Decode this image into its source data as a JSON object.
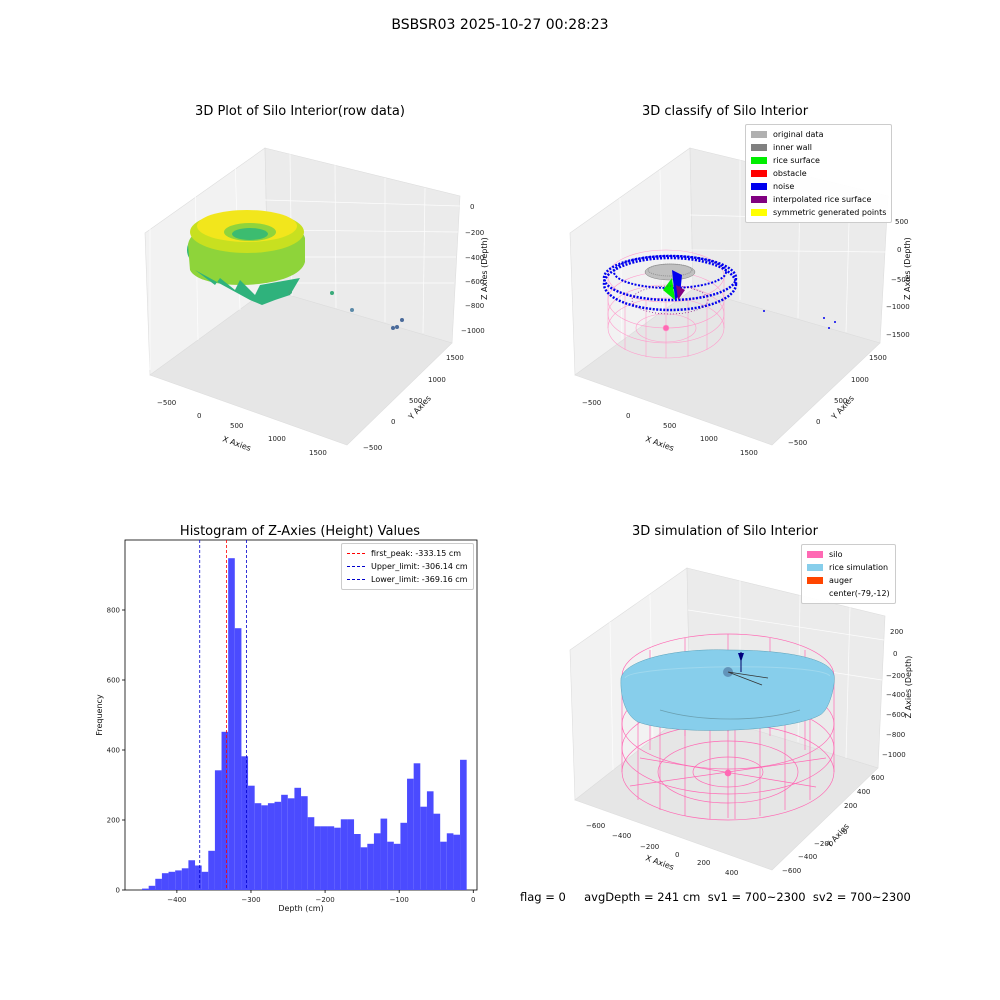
{
  "suptitle": "BSBSR03 2025-10-27 00:28:23",
  "footer": "flag = 0     avgDepth = 241 cm  sv1 = 700~2300  sv2 = 700~2300",
  "colors": {
    "original": "#b0b0b0",
    "inner_wall": "#808080",
    "rice_surface": "#00ee00",
    "obstacle": "#ff0000",
    "noise": "#0000ee",
    "interp": "#800080",
    "symmetric": "#ffff00",
    "silo": "#ff69b4",
    "rice_sim": "#87ceeb",
    "auger": "#ff4500",
    "hist_bar": "#4b4bff",
    "peak_line": "#ff0000",
    "limit_line": "#0000cc"
  },
  "panel1": {
    "title": "3D Plot of Silo Interior(row data)",
    "xlabel": "X Axies",
    "ylabel": "Y Axies",
    "zlabel": "Z Axies (Depth)",
    "xticks": [
      "−500",
      "0",
      "500",
      "1000",
      "1500"
    ],
    "yticks": [
      "−500",
      "0",
      "500",
      "1000",
      "1500"
    ],
    "zticks": [
      "0",
      "−200",
      "−400",
      "−600",
      "−800",
      "−1000"
    ]
  },
  "panel2": {
    "title": "3D classify of Silo Interior",
    "xlabel": "X Axies",
    "ylabel": "Y Axies",
    "zlabel": "Z Axies (Depth)",
    "xticks": [
      "−500",
      "0",
      "500",
      "1000",
      "1500"
    ],
    "yticks": [
      "−500",
      "0",
      "500",
      "1000",
      "1500"
    ],
    "zticks": [
      "500",
      "0",
      "−500",
      "−1000",
      "−1500"
    ],
    "legend": [
      {
        "label": "original data",
        "color": "#b0b0b0"
      },
      {
        "label": "inner wall",
        "color": "#808080"
      },
      {
        "label": "rice surface",
        "color": "#00ee00"
      },
      {
        "label": "obstacle",
        "color": "#ff0000"
      },
      {
        "label": "noise",
        "color": "#0000ee"
      },
      {
        "label": "interpolated rice surface",
        "color": "#800080"
      },
      {
        "label": "symmetric generated points",
        "color": "#ffff00"
      }
    ]
  },
  "panel4": {
    "title": "3D simulation of Silo Interior",
    "xlabel": "X Axies",
    "ylabel": "Y Axies",
    "zlabel": "Z Axies (Depth)",
    "xticks": [
      "−600",
      "−400",
      "−200",
      "0",
      "200",
      "400"
    ],
    "yticks": [
      "−600",
      "−400",
      "−200",
      "0",
      "200",
      "400",
      "600"
    ],
    "zticks": [
      "200",
      "0",
      "−200",
      "−400",
      "−600",
      "−800",
      "−1000"
    ],
    "legend": [
      {
        "label": "silo",
        "color": "#ff69b4"
      },
      {
        "label": "rice simulation",
        "color": "#87ceeb"
      },
      {
        "label": "auger",
        "color": "#ff4500"
      },
      {
        "label": "center(-79,-12)",
        "color": ""
      }
    ]
  },
  "chart_data": [
    {
      "type": "bar",
      "title": "Histogram of Z-Axies (Height) Values",
      "xlabel": "Depth (cm)",
      "ylabel": "Frequency",
      "xlim": [
        -470,
        5
      ],
      "ylim": [
        0,
        1000
      ],
      "xticks": [
        -400,
        -300,
        -200,
        -100,
        0
      ],
      "xtick_labels": [
        "−400",
        "−300",
        "−200",
        "−100",
        "0"
      ],
      "yticks": [
        0,
        200,
        400,
        600,
        800
      ],
      "bin_start": -447,
      "bin_width": 8.94,
      "values": [
        4,
        12,
        32,
        48,
        52,
        56,
        62,
        85,
        70,
        52,
        112,
        342,
        452,
        948,
        748,
        382,
        298,
        248,
        242,
        248,
        252,
        272,
        262,
        292,
        268,
        208,
        182,
        182,
        182,
        178,
        202,
        202,
        160,
        122,
        132,
        162,
        204,
        138,
        132,
        192,
        318,
        362,
        238,
        282,
        218,
        138,
        162,
        158,
        372
      ],
      "vlines": [
        {
          "label": "first_peak: -333.15 cm",
          "x": -333.15,
          "color": "#ff0000"
        },
        {
          "label": "Upper_limit: -306.14 cm",
          "x": -306.14,
          "color": "#0000cc"
        },
        {
          "label": "Lower_limit: -369.16 cm",
          "x": -369.16,
          "color": "#0000cc"
        }
      ]
    }
  ]
}
